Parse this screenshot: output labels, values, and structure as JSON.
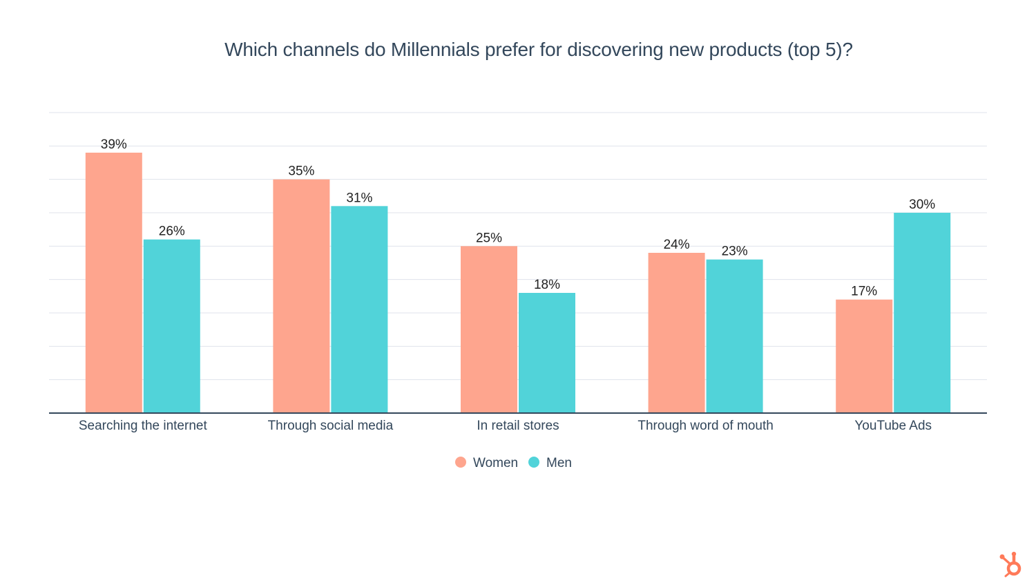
{
  "chart_data": {
    "type": "bar",
    "title": "Which channels do Millennials prefer for discovering new products (top 5)?",
    "categories": [
      "Searching the internet",
      "Through social media",
      "In retail stores",
      "Through word of mouth",
      "YouTube Ads"
    ],
    "series": [
      {
        "name": "Women",
        "values": [
          39,
          35,
          25,
          24,
          17
        ],
        "labels": [
          "39%",
          "35%",
          "25%",
          "24%",
          "17%"
        ],
        "color": "#fea58e"
      },
      {
        "name": "Men",
        "values": [
          26,
          31,
          18,
          23,
          30
        ],
        "labels": [
          "26%",
          "31%",
          "18%",
          "23%",
          "30%"
        ],
        "color": "#51d3d9"
      }
    ],
    "ylim": [
      0,
      45
    ],
    "gridlines": true,
    "legend_position": "bottom-center",
    "xlabel": "",
    "ylabel": ""
  },
  "colors": {
    "text": "#33475b",
    "axis": "#33475b",
    "grid": "#dfe3eb",
    "logo": "#ff7a59"
  },
  "logo": {
    "name": "hubspot-logo-icon"
  }
}
